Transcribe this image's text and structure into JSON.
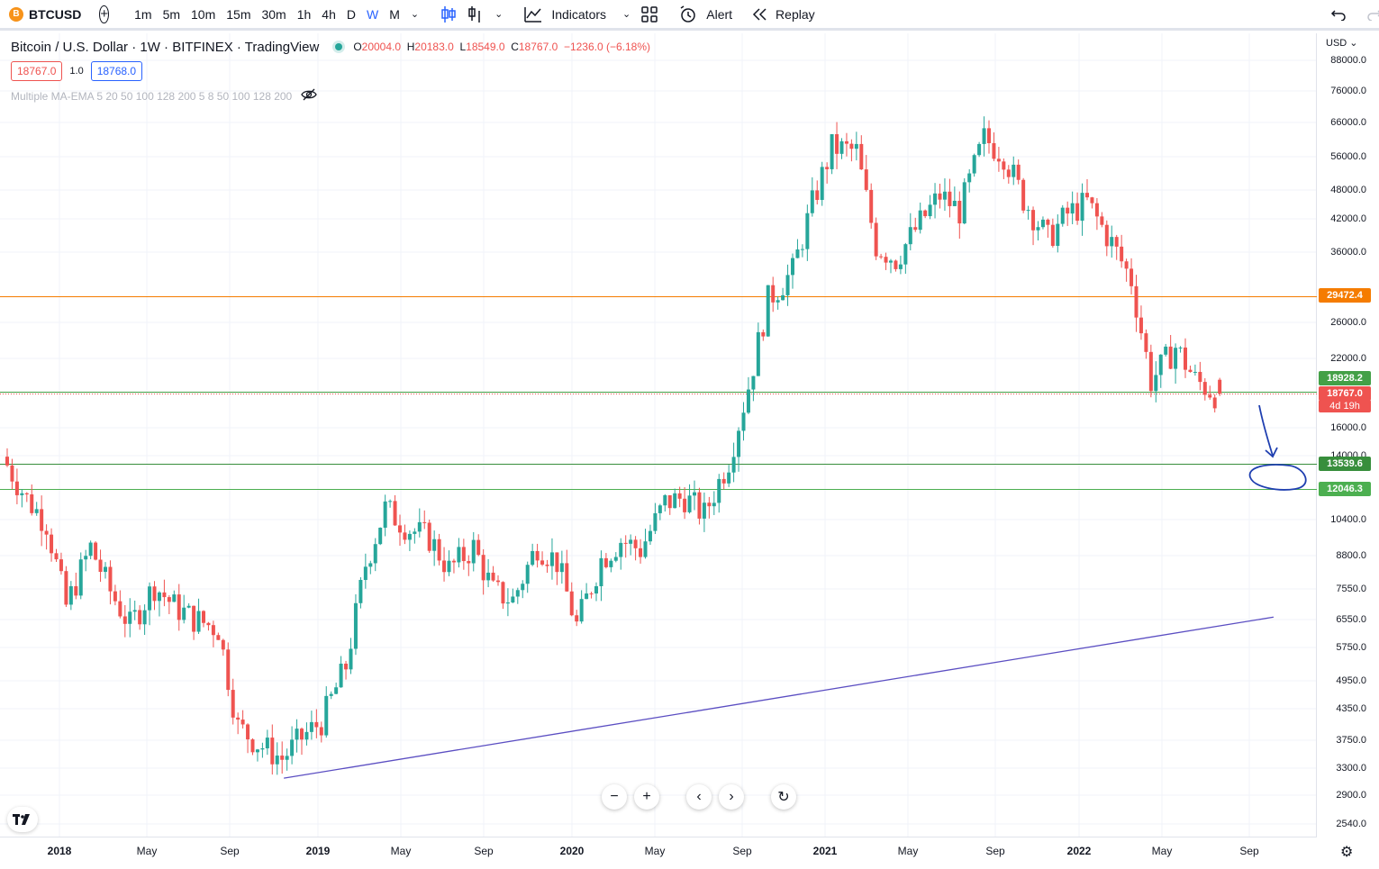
{
  "toolbar": {
    "symbol": "BTCUSD",
    "symbol_badge": "B",
    "add_symbol_icon": "plus-circle-icon",
    "intervals": [
      "1m",
      "5m",
      "10m",
      "15m",
      "30m",
      "1h",
      "4h",
      "D",
      "W",
      "M"
    ],
    "active_interval": "W",
    "indicators_label": "Indicators",
    "alert_label": "Alert",
    "replay_label": "Replay"
  },
  "legend": {
    "title": "Bitcoin / U.S. Dollar · 1W · BITFINEX · TradingView",
    "open_k": "O",
    "open": "20004.0",
    "high_k": "H",
    "high": "20183.0",
    "low_k": "L",
    "low": "18549.0",
    "close_k": "C",
    "close": "18767.0",
    "change": "−1236.0 (−6.18%)",
    "sell_price": "18767.0",
    "spread": "1.0",
    "buy_price": "18768.0",
    "indicator": "Multiple MA-EMA 5 20 50 100 128 200 5 8 50 100 128 200"
  },
  "price_axis": {
    "currency": "USD",
    "ticks": [
      "88000.0",
      "76000.0",
      "66000.0",
      "56000.0",
      "48000.0",
      "42000.0",
      "36000.0",
      "26000.0",
      "22000.0",
      "16000.0",
      "14000.0",
      "10400.0",
      "8800.0",
      "7550.0",
      "6550.0",
      "5750.0",
      "4950.0",
      "4350.0",
      "3750.0",
      "3300.0",
      "2900.0",
      "2540.0"
    ],
    "labels": [
      {
        "text": "29472.4",
        "color": "#f57c00"
      },
      {
        "text": "18928.2",
        "color": "#43a047"
      },
      {
        "text": "18767.0",
        "color": "#ef5350"
      },
      {
        "text": "4d 19h",
        "color": "#ef5350"
      },
      {
        "text": "13539.6",
        "color": "#388e3c"
      },
      {
        "text": "12046.3",
        "color": "#4caf50"
      }
    ]
  },
  "time_axis": {
    "ticks": [
      {
        "text": "2018",
        "year": true
      },
      {
        "text": "May",
        "year": false
      },
      {
        "text": "Sep",
        "year": false
      },
      {
        "text": "2019",
        "year": true
      },
      {
        "text": "May",
        "year": false
      },
      {
        "text": "Sep",
        "year": false
      },
      {
        "text": "2020",
        "year": true
      },
      {
        "text": "May",
        "year": false
      },
      {
        "text": "Sep",
        "year": false
      },
      {
        "text": "2021",
        "year": true
      },
      {
        "text": "May",
        "year": false
      },
      {
        "text": "Sep",
        "year": false
      },
      {
        "text": "2022",
        "year": true
      },
      {
        "text": "May",
        "year": false
      },
      {
        "text": "Sep",
        "year": false
      }
    ]
  },
  "chart_data": {
    "type": "candlestick",
    "scale": "log",
    "series_colors": {
      "up": "#26a69a",
      "down": "#ef5350"
    },
    "horizontal_levels": [
      29472.4,
      18928.2,
      13539.6,
      12046.3
    ],
    "last_price": 18767.0,
    "trendline": {
      "from": {
        "x": "2018-12",
        "y": 3150
      },
      "to": {
        "x": "2022-10",
        "y": 6650
      }
    },
    "close_series_approx": [
      {
        "x": "2017-12",
        "y": 14000
      },
      {
        "x": "2018-01",
        "y": 11500
      },
      {
        "x": "2018-02",
        "y": 10300
      },
      {
        "x": "2018-03",
        "y": 7000
      },
      {
        "x": "2018-04",
        "y": 9200
      },
      {
        "x": "2018-05",
        "y": 7500
      },
      {
        "x": "2018-06",
        "y": 6400
      },
      {
        "x": "2018-07",
        "y": 7700
      },
      {
        "x": "2018-08",
        "y": 7000
      },
      {
        "x": "2018-09",
        "y": 6600
      },
      {
        "x": "2018-10",
        "y": 6300
      },
      {
        "x": "2018-11",
        "y": 4000
      },
      {
        "x": "2018-12",
        "y": 3700
      },
      {
        "x": "2019-01",
        "y": 3450
      },
      {
        "x": "2019-02",
        "y": 3800
      },
      {
        "x": "2019-03",
        "y": 4100
      },
      {
        "x": "2019-04",
        "y": 5300
      },
      {
        "x": "2019-05",
        "y": 8500
      },
      {
        "x": "2019-06",
        "y": 11000
      },
      {
        "x": "2019-07",
        "y": 10000
      },
      {
        "x": "2019-08",
        "y": 9600
      },
      {
        "x": "2019-09",
        "y": 8300
      },
      {
        "x": "2019-10",
        "y": 9200
      },
      {
        "x": "2019-11",
        "y": 7500
      },
      {
        "x": "2019-12",
        "y": 7200
      },
      {
        "x": "2020-01",
        "y": 9300
      },
      {
        "x": "2020-02",
        "y": 8600
      },
      {
        "x": "2020-03",
        "y": 6400
      },
      {
        "x": "2020-04",
        "y": 8700
      },
      {
        "x": "2020-05",
        "y": 9500
      },
      {
        "x": "2020-06",
        "y": 9100
      },
      {
        "x": "2020-07",
        "y": 11300
      },
      {
        "x": "2020-08",
        "y": 11600
      },
      {
        "x": "2020-09",
        "y": 10700
      },
      {
        "x": "2020-10",
        "y": 13800
      },
      {
        "x": "2020-11",
        "y": 19400
      },
      {
        "x": "2020-12",
        "y": 29000
      },
      {
        "x": "2021-01",
        "y": 33100
      },
      {
        "x": "2021-02",
        "y": 45200
      },
      {
        "x": "2021-03",
        "y": 58800
      },
      {
        "x": "2021-04",
        "y": 57700
      },
      {
        "x": "2021-05",
        "y": 37300
      },
      {
        "x": "2021-06",
        "y": 35000
      },
      {
        "x": "2021-07",
        "y": 41500
      },
      {
        "x": "2021-08",
        "y": 47100
      },
      {
        "x": "2021-09",
        "y": 43800
      },
      {
        "x": "2021-10",
        "y": 61300
      },
      {
        "x": "2021-11",
        "y": 57000
      },
      {
        "x": "2021-12",
        "y": 46300
      },
      {
        "x": "2022-01",
        "y": 38500
      },
      {
        "x": "2022-02",
        "y": 43200
      },
      {
        "x": "2022-03",
        "y": 45500
      },
      {
        "x": "2022-04",
        "y": 37700
      },
      {
        "x": "2022-05",
        "y": 31800
      },
      {
        "x": "2022-06",
        "y": 19900
      },
      {
        "x": "2022-07",
        "y": 23300
      },
      {
        "x": "2022-08",
        "y": 20000
      },
      {
        "x": "2022-09",
        "y": 18767
      }
    ]
  }
}
